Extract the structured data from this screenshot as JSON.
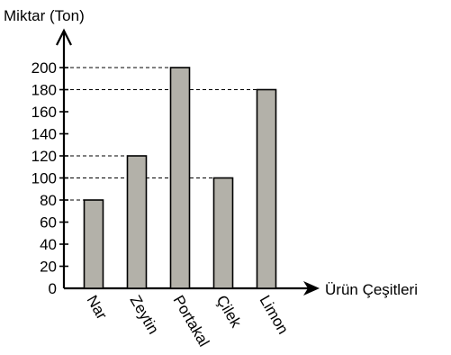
{
  "chart_data": {
    "type": "bar",
    "ylabel": "Miktar (Ton)",
    "xlabel": "Ürün Çeşitleri",
    "categories": [
      "Nar",
      "Zeytin",
      "Portakal",
      "Çilek",
      "Limon"
    ],
    "values": [
      80,
      120,
      200,
      100,
      180
    ],
    "y_ticks": [
      0,
      20,
      40,
      60,
      80,
      100,
      120,
      140,
      160,
      180,
      200
    ],
    "ylim": [
      0,
      200
    ],
    "bar_color": "#b3b1a9",
    "grid": false,
    "guide_lines": "dashed from each bar top to the y-axis"
  }
}
